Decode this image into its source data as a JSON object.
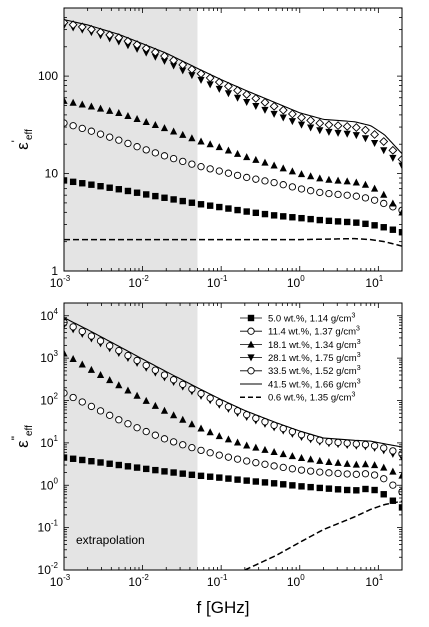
{
  "chart_data": [
    {
      "type": "scatter",
      "panel": "top",
      "ylabel": "ε'eff",
      "ylabel_main": "ε",
      "ylabel_mark": "'",
      "ylabel_sub": "eff",
      "xscale": "log",
      "yscale": "log",
      "xlim": [
        0.001,
        20
      ],
      "ylim": [
        1,
        500
      ],
      "xticks": [
        "10",
        "10",
        "10",
        "10",
        "10"
      ],
      "xtick_exp": [
        "-3",
        "-2",
        "-1",
        "0",
        "1"
      ],
      "xtick_values": [
        0.001,
        0.01,
        0.1,
        1,
        10
      ],
      "yticks": [
        "1",
        "10",
        "100"
      ],
      "ytick_values": [
        1,
        10,
        100
      ],
      "shaded_region": [
        0.001,
        0.05
      ],
      "x": [
        0.001,
        0.002,
        0.005,
        0.01,
        0.02,
        0.05,
        0.1,
        0.2,
        0.5,
        1,
        2,
        5,
        8,
        12,
        20
      ],
      "series": [
        {
          "id": "s1",
          "marker": "square",
          "values": [
            8.5,
            7.8,
            6.9,
            6.2,
            5.6,
            4.9,
            4.5,
            4.1,
            3.7,
            3.5,
            3.3,
            3.15,
            3.0,
            2.8,
            2.5
          ]
        },
        {
          "id": "s2",
          "marker": "circle-open",
          "values": [
            33,
            28,
            22,
            18,
            15,
            12,
            10.5,
            9.2,
            8.0,
            7.0,
            6.3,
            5.9,
            5.5,
            4.9,
            4.2
          ]
        },
        {
          "id": "s3",
          "marker": "triangle-up",
          "values": [
            56,
            50,
            42,
            35,
            29,
            22,
            18.5,
            15,
            12,
            10,
            8.8,
            8.2,
            7.5,
            6.0,
            4.0
          ]
        },
        {
          "id": "s4",
          "marker": "triangle-down",
          "values": [
            330,
            290,
            225,
            180,
            140,
            95,
            72,
            55,
            40,
            32,
            27,
            25,
            22,
            17,
            12
          ]
        },
        {
          "id": "s5",
          "marker": "diamond-open",
          "values": [
            355,
            310,
            248,
            200,
            158,
            110,
            85,
            66,
            48,
            38,
            32,
            30,
            27,
            21,
            14
          ]
        },
        {
          "id": "s6",
          "marker": "solid",
          "values": [
            380,
            335,
            268,
            215,
            172,
            120,
            92,
            72,
            53,
            42,
            36,
            34,
            31,
            25,
            16
          ]
        },
        {
          "id": "s7",
          "marker": "dashed",
          "values": [
            2.1,
            2.1,
            2.1,
            2.1,
            2.1,
            2.1,
            2.1,
            2.1,
            2.1,
            2.1,
            2.12,
            2.15,
            2.1,
            2.0,
            1.8
          ]
        }
      ]
    },
    {
      "type": "scatter",
      "panel": "bottom",
      "ylabel": "ε\"eff",
      "ylabel_main": "ε",
      "ylabel_mark": "\"",
      "ylabel_sub": "eff",
      "xlabel": "f [GHz]",
      "xscale": "log",
      "yscale": "log",
      "xlim": [
        0.001,
        20
      ],
      "ylim": [
        0.01,
        20000
      ],
      "xticks": [
        "10",
        "10",
        "10",
        "10",
        "10"
      ],
      "xtick_exp": [
        "-3",
        "-2",
        "-1",
        "0",
        "1"
      ],
      "xtick_values": [
        0.001,
        0.01,
        0.1,
        1,
        10
      ],
      "yticks": [
        "10",
        "10",
        "10",
        "10",
        "10",
        "10",
        "10"
      ],
      "ytick_exp": [
        "-2",
        "-1",
        "0",
        "1",
        "2",
        "3",
        "4"
      ],
      "ytick_values": [
        0.01,
        0.1,
        1,
        10,
        100,
        1000,
        10000
      ],
      "shaded_region": [
        0.001,
        0.05
      ],
      "annotation": "extrapolation",
      "x": [
        0.001,
        0.002,
        0.005,
        0.01,
        0.02,
        0.05,
        0.1,
        0.2,
        0.5,
        1,
        2,
        5,
        8,
        12,
        20
      ],
      "series": [
        {
          "id": "s1",
          "marker": "square",
          "label": "5.0 wt.%, 1.14 g/cm",
          "label_sup": "3",
          "values": [
            4.5,
            3.8,
            3.0,
            2.5,
            2.1,
            1.7,
            1.5,
            1.3,
            1.1,
            0.95,
            0.85,
            0.75,
            0.85,
            0.6,
            0.3
          ]
        },
        {
          "id": "s2",
          "marker": "circle-open",
          "label": "11.4 wt.%, 1.37 g/cm",
          "label_sup": "3",
          "values": [
            150,
            80,
            35,
            20,
            12,
            7,
            5,
            3.8,
            2.8,
            2.3,
            2.0,
            1.8,
            1.9,
            1.4,
            0.7
          ]
        },
        {
          "id": "s3",
          "marker": "triangle-up",
          "label": "18.1 wt.%, 1.34 g/cm",
          "label_sup": "3",
          "values": [
            1300,
            600,
            230,
            110,
            55,
            24,
            14,
            9,
            6,
            4.5,
            3.7,
            3.1,
            3.2,
            2.6,
            1.7
          ]
        },
        {
          "id": "s4",
          "marker": "triangle-down",
          "label": "28.1 wt.%, 1.75 g/cm",
          "label_sup": "3",
          "values": [
            6000,
            3200,
            1300,
            650,
            330,
            140,
            75,
            42,
            22,
            14,
            10,
            8.5,
            8.0,
            6.5,
            4.5
          ]
        },
        {
          "id": "s5",
          "marker": "circle-open",
          "label": "33.5 wt.%, 1.52 g/cm",
          "label_sup": "3",
          "values": [
            7000,
            3700,
            1500,
            750,
            380,
            160,
            85,
            48,
            25,
            16,
            11,
            9.5,
            9.0,
            7.5,
            5.5
          ]
        },
        {
          "id": "s6",
          "marker": "solid",
          "label": "41.5 wt.%, 1.66 g/cm",
          "label_sup": "3",
          "values": [
            9000,
            4700,
            1900,
            950,
            480,
            200,
            105,
            58,
            30,
            19,
            13,
            11.5,
            11,
            9.5,
            8
          ]
        },
        {
          "id": "s7",
          "marker": "dashed",
          "label": "0.6 wt.%, 1.35 g/cm",
          "label_sup": "3",
          "values": [
            null,
            null,
            null,
            null,
            null,
            null,
            null,
            0.01,
            0.022,
            0.045,
            0.09,
            0.18,
            0.27,
            0.35,
            0.42
          ]
        }
      ]
    }
  ]
}
